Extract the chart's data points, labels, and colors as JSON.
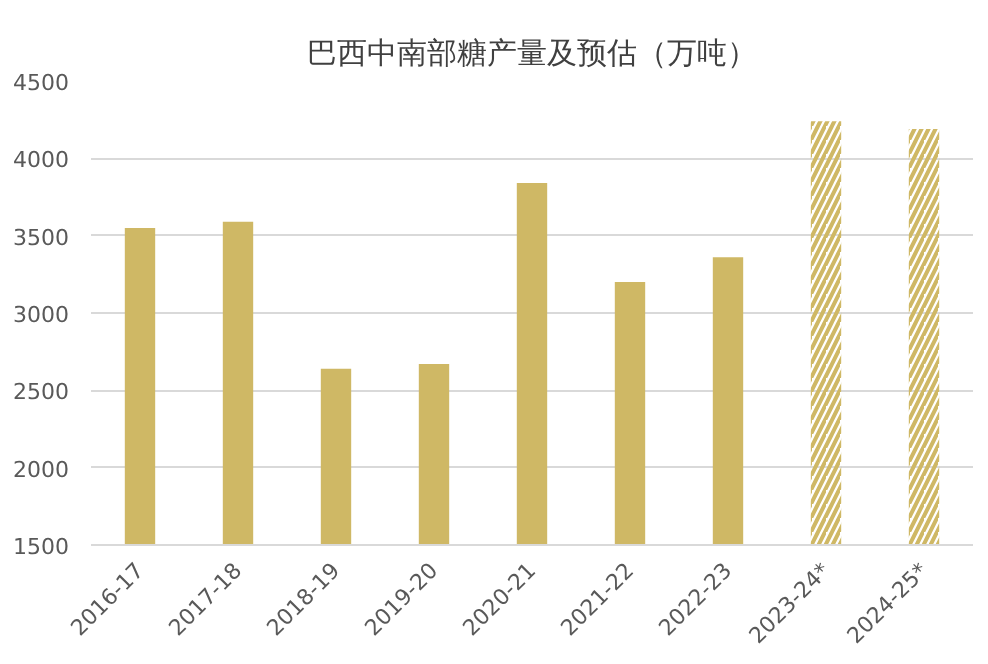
{
  "chart_data": {
    "type": "bar",
    "title": "巴西中南部糖产量及预估（万吨）",
    "categories": [
      "2016-17",
      "2017-18",
      "2018-19",
      "2019-20",
      "2020-21",
      "2021-22",
      "2022-23",
      "2023-24*",
      "2024-25*"
    ],
    "series": [
      {
        "color": "#cfb865",
        "values": [
          3550,
          3590,
          2640,
          2670,
          3840,
          3200,
          3360,
          null,
          null
        ]
      },
      {
        "color": "#cfb865",
        "values": [
          null,
          null,
          null,
          null,
          null,
          null,
          null,
          4240,
          4190
        ]
      }
    ],
    "ylim": [
      1500,
      4500
    ],
    "yticks": [
      1500,
      2000,
      2500,
      3000,
      3500,
      4000,
      4500
    ],
    "grid": "y"
  }
}
